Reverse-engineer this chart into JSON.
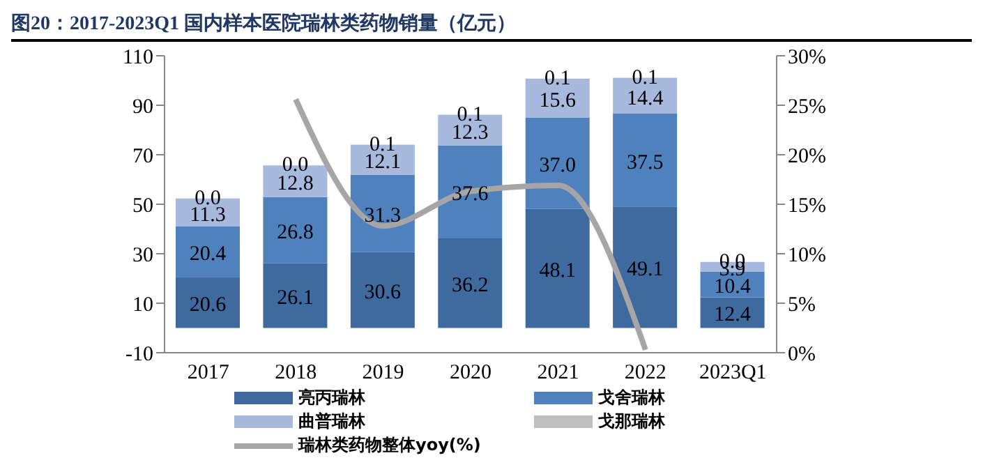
{
  "chart_data": {
    "type": "bar",
    "title": "图20：2017-2023Q1 国内样本医院瑞林类药物销量（亿元）",
    "categories": [
      "2017",
      "2018",
      "2019",
      "2020",
      "2021",
      "2022",
      "2023Q1"
    ],
    "stacked": true,
    "grid": false,
    "legend": "bottom",
    "series": [
      {
        "name": "亮丙瑞林",
        "color": "#3e6a9f",
        "values": [
          20.6,
          26.1,
          30.6,
          36.2,
          48.1,
          49.1,
          12.4
        ],
        "value_labels": [
          "20.6",
          "26.1",
          "30.6",
          "36.2",
          "48.1",
          "49.1",
          "12.4"
        ]
      },
      {
        "name": "戈舍瑞林",
        "color": "#4f81bd",
        "values": [
          20.4,
          26.8,
          31.3,
          37.6,
          37.0,
          37.5,
          10.4
        ],
        "value_labels": [
          "20.4",
          "26.8",
          "31.3",
          "37.6",
          "37.0",
          "37.5",
          "10.4"
        ]
      },
      {
        "name": "曲普瑞林",
        "color": "#a7b9dc",
        "values": [
          11.3,
          12.8,
          12.1,
          12.3,
          15.6,
          14.4,
          3.9
        ],
        "value_labels": [
          "11.3",
          "12.8",
          "12.1",
          "12.3",
          "15.6",
          "14.4",
          "3.9"
        ]
      },
      {
        "name": "戈那瑞林",
        "color": "#bfbfbf",
        "values": [
          0.0,
          0.0,
          0.1,
          0.1,
          0.1,
          0.1,
          0.0
        ],
        "value_labels": [
          "0.0",
          "0.0",
          "0.1",
          "0.1",
          "0.1",
          "0.1",
          "0.0"
        ]
      },
      {
        "name": "瑞林类药物整体yoy(%)",
        "type": "line",
        "axis": "y2",
        "color": "#a6a6a6",
        "values": [
          null,
          25.6,
          12.8,
          16.3,
          16.9,
          0.3,
          null
        ]
      }
    ],
    "ylim": [
      -10,
      110
    ],
    "yticks": [
      -10,
      10,
      30,
      50,
      70,
      90,
      110
    ],
    "y2lim": [
      0,
      30
    ],
    "y2ticks": [
      {
        "value": 0,
        "label": "0%"
      },
      {
        "value": 5,
        "label": "5%"
      },
      {
        "value": 10,
        "label": "10%"
      },
      {
        "value": 15,
        "label": "15%"
      },
      {
        "value": 20,
        "label": "20%"
      },
      {
        "value": 25,
        "label": "25%"
      },
      {
        "value": 30,
        "label": "30%"
      }
    ]
  }
}
